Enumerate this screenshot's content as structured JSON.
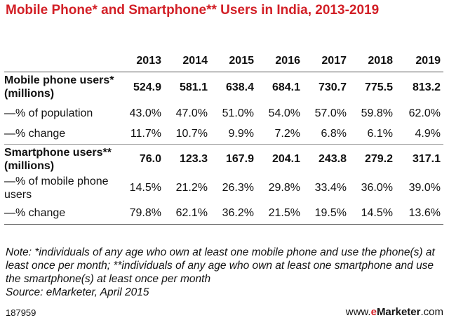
{
  "title": "Mobile Phone* and Smartphone** Users in India, 2013-2019",
  "chart_data": {
    "type": "table",
    "title": "Mobile Phone* and Smartphone** Users in India, 2013-2019",
    "columns": [
      "2013",
      "2014",
      "2015",
      "2016",
      "2017",
      "2018",
      "2019"
    ],
    "rows": [
      {
        "label": "Mobile phone users* (millions)",
        "values": [
          "524.9",
          "581.1",
          "638.4",
          "684.1",
          "730.7",
          "775.5",
          "813.2"
        ]
      },
      {
        "label": "—% of population",
        "values": [
          "43.0%",
          "47.0%",
          "51.0%",
          "54.0%",
          "57.0%",
          "59.8%",
          "62.0%"
        ]
      },
      {
        "label": "—% change",
        "values": [
          "11.7%",
          "10.7%",
          "9.9%",
          "7.2%",
          "6.8%",
          "6.1%",
          "4.9%"
        ]
      },
      {
        "label": "Smartphone users** (millions)",
        "values": [
          "76.0",
          "123.3",
          "167.9",
          "204.1",
          "243.8",
          "279.2",
          "317.1"
        ]
      },
      {
        "label": "—% of mobile phone users",
        "values": [
          "14.5%",
          "21.2%",
          "26.3%",
          "29.8%",
          "33.4%",
          "36.0%",
          "39.0%"
        ]
      },
      {
        "label": "—% change",
        "values": [
          "79.8%",
          "62.1%",
          "36.2%",
          "21.5%",
          "19.5%",
          "14.5%",
          "13.6%"
        ]
      }
    ]
  },
  "note": "Note: *individuals of any age who own at least one mobile phone and use the phone(s) at least once per month; **individuals of any age who own at least one smartphone and use the smartphone(s) at least once per month",
  "source": "Source: eMarketer, April 2015",
  "footer_id": "187959",
  "brand": {
    "prefix": "www.",
    "e": "e",
    "rest": "Marketer",
    "suffix": ".com"
  }
}
